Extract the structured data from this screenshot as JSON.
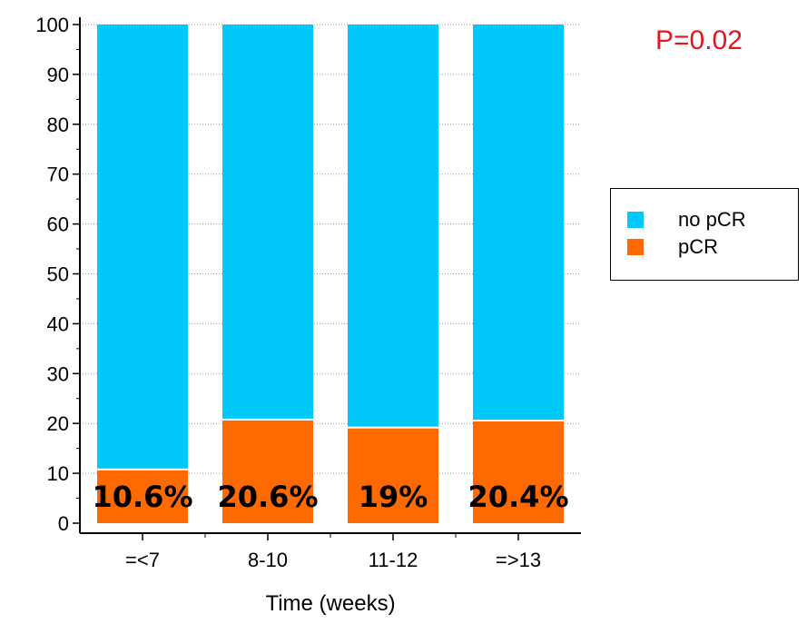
{
  "chart_data": {
    "type": "bar",
    "stacked": true,
    "categories": [
      "=<7",
      "8-10",
      "11-12",
      "=>13"
    ],
    "series": [
      {
        "name": "pCR",
        "color": "#ff6a00",
        "values": [
          10.6,
          20.6,
          19,
          20.4
        ]
      },
      {
        "name": "no pCR",
        "color": "#00c8fa",
        "values": [
          89.4,
          79.4,
          81,
          79.6
        ]
      }
    ],
    "data_labels": [
      "10.6%",
      "20.6%",
      "19%",
      "20.4%"
    ],
    "ylim": [
      0,
      100
    ],
    "yticks": [
      0,
      10,
      20,
      30,
      40,
      50,
      60,
      70,
      80,
      90,
      100
    ],
    "xlabel": "Time (weeks)",
    "ylabel": "",
    "grid": "dotted horizontal",
    "legend_position": "right",
    "annotation": "P=0.02",
    "annotation_color": "#e8141b"
  }
}
